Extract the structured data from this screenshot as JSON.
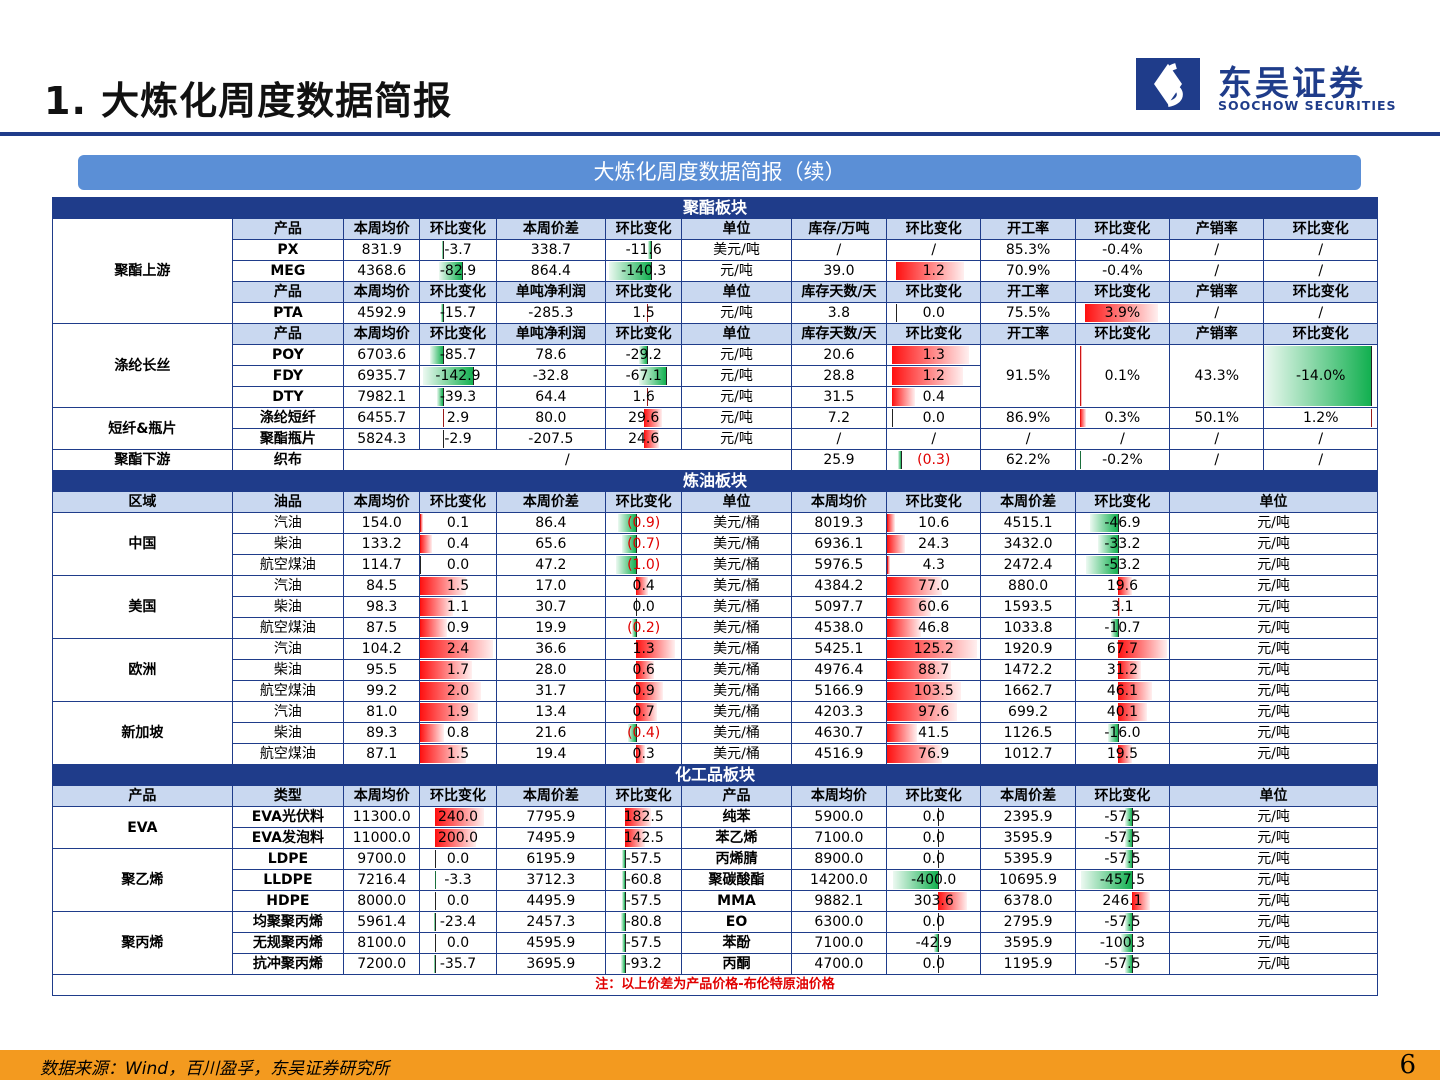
{
  "title": "1. 大炼化周度数据简报",
  "logo": {
    "cn": "东吴证券",
    "en": "SOOCHOW SECURITIES"
  },
  "banner": "大炼化周度数据简报（续）",
  "sections": {
    "polyester": "聚酯板块",
    "refining": "炼油板块",
    "chemical": "化工品板块"
  },
  "headers": {
    "h1": [
      "产品",
      "本周均价",
      "环比变化",
      "本周价差",
      "环比变化",
      "单位",
      "库存/万吨",
      "环比变化",
      "开工率",
      "环比变化",
      "产销率",
      "环比变化"
    ],
    "h2": [
      "产品",
      "本周均价",
      "环比变化",
      "单吨净利润",
      "环比变化",
      "单位",
      "库存天数/天",
      "环比变化",
      "开工率",
      "环比变化",
      "产销率",
      "环比变化"
    ],
    "refining": [
      "区域",
      "油品",
      "本周均价",
      "环比变化",
      "本周价差",
      "环比变化",
      "单位",
      "本周均价",
      "环比变化",
      "本周价差",
      "环比变化",
      "单位"
    ],
    "chemical": [
      "产品",
      "类型",
      "本周均价",
      "环比变化",
      "本周价差",
      "环比变化",
      "产品",
      "本周均价",
      "环比变化",
      "本周价差",
      "环比变化",
      "单位"
    ]
  },
  "groups": {
    "upstream": "聚酯上游",
    "filament": "涤纶长丝",
    "staple": "短纤&瓶片",
    "downstream": "聚酯下游",
    "china": "中国",
    "us": "美国",
    "europe": "欧洲",
    "singapore": "新加坡",
    "eva": "EVA",
    "pe": "聚乙烯",
    "pp": "聚丙烯"
  },
  "polyester_rows": {
    "px": [
      "PX",
      "831.9",
      "-3.7",
      "338.7",
      "-11.6",
      "美元/吨",
      "/",
      "/",
      "85.3%",
      "-0.4%",
      "/",
      "/"
    ],
    "meg": [
      "MEG",
      "4368.6",
      "-82.9",
      "864.4",
      "-140.3",
      "元/吨",
      "39.0",
      "1.2",
      "70.9%",
      "-0.4%",
      "/",
      "/"
    ],
    "pta": [
      "PTA",
      "4592.9",
      "-15.7",
      "-285.3",
      "1.5",
      "元/吨",
      "3.8",
      "0.0",
      "75.5%",
      "3.9%",
      "/",
      "/"
    ],
    "poy": [
      "POY",
      "6703.6",
      "-85.7",
      "78.6",
      "-29.2",
      "元/吨",
      "20.6",
      "1.3"
    ],
    "fdy": [
      "FDY",
      "6935.7",
      "-142.9",
      "-32.8",
      "-67.1",
      "元/吨",
      "28.8",
      "1.2"
    ],
    "dty": [
      "DTY",
      "7982.1",
      "-39.3",
      "64.4",
      "1.6",
      "元/吨",
      "31.5",
      "0.4"
    ],
    "filament_shared": [
      "91.5%",
      "0.1%",
      "43.3%",
      "-14.0%"
    ],
    "staple": [
      "涤纶短纤",
      "6455.7",
      "2.9",
      "80.0",
      "29.6",
      "元/吨",
      "7.2",
      "0.0",
      "86.9%",
      "0.3%",
      "50.1%",
      "1.2%"
    ],
    "bottle": [
      "聚酯瓶片",
      "5824.3",
      "-2.9",
      "-207.5",
      "24.6",
      "元/吨",
      "/",
      "/",
      "/",
      "/",
      "/",
      "/"
    ],
    "fabric": [
      "织布",
      "/",
      "25.9",
      "(0.3)",
      "62.2%",
      "-0.2%",
      "/",
      "/"
    ]
  },
  "refining_rows": [
    [
      "汽油",
      "154.0",
      "0.1",
      "86.4",
      "(0.9)",
      "美元/桶",
      "8019.3",
      "10.6",
      "4515.1",
      "-46.9",
      "元/吨"
    ],
    [
      "柴油",
      "133.2",
      "0.4",
      "65.6",
      "(0.7)",
      "美元/桶",
      "6936.1",
      "24.3",
      "3432.0",
      "-33.2",
      "元/吨"
    ],
    [
      "航空煤油",
      "114.7",
      "0.0",
      "47.2",
      "(1.0)",
      "美元/桶",
      "5976.5",
      "4.3",
      "2472.4",
      "-53.2",
      "元/吨"
    ],
    [
      "汽油",
      "84.5",
      "1.5",
      "17.0",
      "0.4",
      "美元/桶",
      "4384.2",
      "77.0",
      "880.0",
      "19.6",
      "元/吨"
    ],
    [
      "柴油",
      "98.3",
      "1.1",
      "30.7",
      "0.0",
      "美元/桶",
      "5097.7",
      "60.6",
      "1593.5",
      "3.1",
      "元/吨"
    ],
    [
      "航空煤油",
      "87.5",
      "0.9",
      "19.9",
      "(0.2)",
      "美元/桶",
      "4538.0",
      "46.8",
      "1033.8",
      "-10.7",
      "元/吨"
    ],
    [
      "汽油",
      "104.2",
      "2.4",
      "36.6",
      "1.3",
      "美元/桶",
      "5425.1",
      "125.2",
      "1920.9",
      "67.7",
      "元/吨"
    ],
    [
      "柴油",
      "95.5",
      "1.7",
      "28.0",
      "0.6",
      "美元/桶",
      "4976.4",
      "88.7",
      "1472.2",
      "31.2",
      "元/吨"
    ],
    [
      "航空煤油",
      "99.2",
      "2.0",
      "31.7",
      "0.9",
      "美元/桶",
      "5166.9",
      "103.5",
      "1662.7",
      "46.1",
      "元/吨"
    ],
    [
      "汽油",
      "81.0",
      "1.9",
      "13.4",
      "0.7",
      "美元/桶",
      "4203.3",
      "97.6",
      "699.2",
      "40.1",
      "元/吨"
    ],
    [
      "柴油",
      "89.3",
      "0.8",
      "21.6",
      "(0.4)",
      "美元/桶",
      "4630.7",
      "41.5",
      "1126.5",
      "-16.0",
      "元/吨"
    ],
    [
      "航空煤油",
      "87.1",
      "1.5",
      "19.4",
      "0.3",
      "美元/桶",
      "4516.9",
      "76.9",
      "1012.7",
      "19.5",
      "元/吨"
    ]
  ],
  "chemical_rows": [
    [
      "EVA光伏料",
      "11300.0",
      "240.0",
      "7795.9",
      "182.5",
      "纯苯",
      "5900.0",
      "0.0",
      "2395.9",
      "-57.5",
      "元/吨"
    ],
    [
      "EVA发泡料",
      "11000.0",
      "200.0",
      "7495.9",
      "142.5",
      "苯乙烯",
      "7100.0",
      "0.0",
      "3595.9",
      "-57.5",
      "元/吨"
    ],
    [
      "LDPE",
      "9700.0",
      "0.0",
      "6195.9",
      "-57.5",
      "丙烯腈",
      "8900.0",
      "0.0",
      "5395.9",
      "-57.5",
      "元/吨"
    ],
    [
      "LLDPE",
      "7216.4",
      "-3.3",
      "3712.3",
      "-60.8",
      "聚碳酸酯",
      "14200.0",
      "-400.0",
      "10695.9",
      "-457.5",
      "元/吨"
    ],
    [
      "HDPE",
      "8000.0",
      "0.0",
      "4495.9",
      "-57.5",
      "MMA",
      "9882.1",
      "303.6",
      "6378.0",
      "246.1",
      "元/吨"
    ],
    [
      "均聚聚丙烯",
      "5961.4",
      "-23.4",
      "2457.3",
      "-80.8",
      "EO",
      "6300.0",
      "0.0",
      "2795.9",
      "-57.5",
      "元/吨"
    ],
    [
      "无规聚丙烯",
      "8100.0",
      "0.0",
      "4595.9",
      "-57.5",
      "苯酚",
      "7100.0",
      "-42.9",
      "3595.9",
      "-100.3",
      "元/吨"
    ],
    [
      "抗冲聚丙烯",
      "7200.0",
      "-35.7",
      "3695.9",
      "-93.2",
      "丙酮",
      "4700.0",
      "0.0",
      "1195.9",
      "-57.5",
      "元/吨"
    ]
  ],
  "note": "注：以上价差为产品价格-布伦特原油价格",
  "footer": {
    "source": "数据来源：Wind，百川盈孚，东吴证券研究所",
    "page": "6"
  },
  "colors": {
    "navy": "#1f3c8a",
    "header_fill": "#c9d8f0",
    "banner": "#5b8fd6",
    "positive": "#ff1010",
    "negative": "#12b050",
    "footer": "#f39a1f"
  }
}
